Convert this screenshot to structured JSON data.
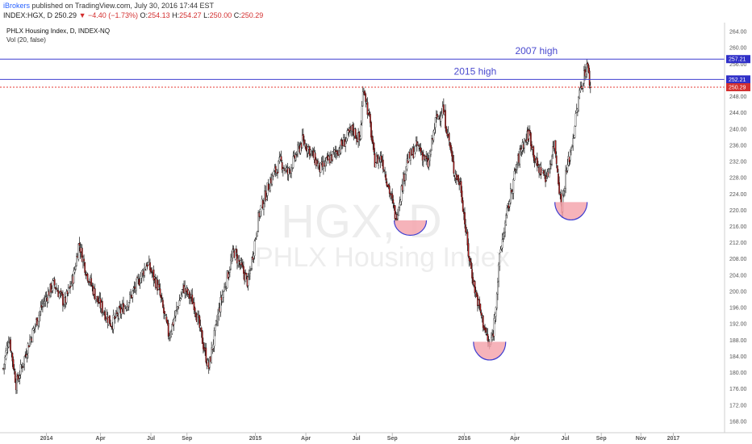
{
  "header": {
    "publisher": "iBrokers",
    "published_text": " published on TradingView.com, July 30, 2016 17:44 EST",
    "symbol": "INDEX:HGX, D",
    "last": "250.29",
    "change": "▼ −4.40 (−1.73%)",
    "open_label": "O:",
    "open": "254.13",
    "high_label": "H:",
    "high": "254.27",
    "low_label": "L:",
    "low": "250.00",
    "close_label": "C:",
    "close": "250.29"
  },
  "legend": {
    "title": "PHLX Housing Index, D, INDEX-NQ",
    "indicator": "Vol (20, false)"
  },
  "watermark": {
    "symbol": "HGX, D",
    "name": "PHLX Housing Index"
  },
  "colors": {
    "up": "#ffffff",
    "down": "#b71c1c",
    "wick": "#111111",
    "blue_line": "#3f3fd0",
    "red_line": "#e53935",
    "tag_blue": "#3030c8",
    "tag_red": "#d32f2f",
    "bowl_fill": "#f4a6ae",
    "bowl_stroke": "#3f3fd0"
  },
  "chart_data": {
    "type": "candlestick",
    "title": "PHLX Housing Index, D, INDEX-NQ",
    "y_ticks": [
      "264.00",
      "260.00",
      "256.00",
      "252.00",
      "248.00",
      "244.00",
      "240.00",
      "236.00",
      "232.00",
      "228.00",
      "224.00",
      "220.00",
      "216.00",
      "212.00",
      "208.00",
      "204.00",
      "200.00",
      "196.00",
      "192.00",
      "188.00",
      "184.00",
      "180.00",
      "176.00",
      "172.00",
      "168.00"
    ],
    "ylim": [
      165.2,
      266.2
    ],
    "x_ticks": [
      {
        "label": "2014",
        "t": 0.06
      },
      {
        "label": "Apr",
        "t": 0.135
      },
      {
        "label": "Jul",
        "t": 0.205
      },
      {
        "label": "Sep",
        "t": 0.255
      },
      {
        "label": "2015",
        "t": 0.35
      },
      {
        "label": "Apr",
        "t": 0.42
      },
      {
        "label": "Jul",
        "t": 0.49
      },
      {
        "label": "Sep",
        "t": 0.54
      },
      {
        "label": "2016",
        "t": 0.64
      },
      {
        "label": "Apr",
        "t": 0.71
      },
      {
        "label": "Jul",
        "t": 0.78
      },
      {
        "label": "Sep",
        "t": 0.83
      },
      {
        "label": "Nov",
        "t": 0.885
      },
      {
        "label": "2017",
        "t": 0.93
      }
    ],
    "path_keypoints": [
      [
        0.0,
        181
      ],
      [
        0.008,
        189
      ],
      [
        0.018,
        177
      ],
      [
        0.035,
        187
      ],
      [
        0.055,
        197
      ],
      [
        0.07,
        202
      ],
      [
        0.085,
        197
      ],
      [
        0.098,
        204
      ],
      [
        0.105,
        212
      ],
      [
        0.115,
        205
      ],
      [
        0.13,
        198
      ],
      [
        0.15,
        192
      ],
      [
        0.175,
        198
      ],
      [
        0.2,
        207
      ],
      [
        0.215,
        201
      ],
      [
        0.23,
        189
      ],
      [
        0.25,
        201
      ],
      [
        0.265,
        197
      ],
      [
        0.285,
        181
      ],
      [
        0.3,
        196
      ],
      [
        0.32,
        210
      ],
      [
        0.34,
        202
      ],
      [
        0.355,
        219
      ],
      [
        0.37,
        227
      ],
      [
        0.385,
        232
      ],
      [
        0.395,
        229
      ],
      [
        0.415,
        237
      ],
      [
        0.425,
        235
      ],
      [
        0.44,
        230
      ],
      [
        0.455,
        233
      ],
      [
        0.47,
        236
      ],
      [
        0.485,
        240
      ],
      [
        0.495,
        237
      ],
      [
        0.5,
        251
      ],
      [
        0.51,
        240
      ],
      [
        0.515,
        232
      ],
      [
        0.525,
        233
      ],
      [
        0.545,
        218
      ],
      [
        0.56,
        232
      ],
      [
        0.575,
        236
      ],
      [
        0.59,
        231
      ],
      [
        0.6,
        242
      ],
      [
        0.61,
        245
      ],
      [
        0.618,
        238
      ],
      [
        0.625,
        230
      ],
      [
        0.635,
        226
      ],
      [
        0.645,
        210
      ],
      [
        0.655,
        200
      ],
      [
        0.665,
        193
      ],
      [
        0.675,
        186
      ],
      [
        0.68,
        190
      ],
      [
        0.69,
        210
      ],
      [
        0.7,
        220
      ],
      [
        0.71,
        229
      ],
      [
        0.72,
        236
      ],
      [
        0.73,
        239
      ],
      [
        0.74,
        231
      ],
      [
        0.755,
        228
      ],
      [
        0.765,
        237
      ],
      [
        0.775,
        220
      ],
      [
        0.78,
        228
      ],
      [
        0.79,
        237
      ],
      [
        0.8,
        249
      ],
      [
        0.81,
        256
      ],
      [
        0.815,
        250.3
      ]
    ],
    "close": 250.29,
    "levels": [
      {
        "label": "2007 high",
        "value": 257.21,
        "tag": "257.21",
        "color": "blue"
      },
      {
        "label": "2015 high",
        "value": 252.21,
        "tag": "252.21",
        "color": "blue"
      },
      {
        "label": "",
        "value": 250.29,
        "tag": "250.29",
        "color": "red"
      }
    ],
    "bowls": [
      {
        "t": 0.565,
        "top": 217.5,
        "bottom": 214.2
      },
      {
        "t": 0.675,
        "top": 187.6,
        "bottom": 183.5
      },
      {
        "t": 0.788,
        "top": 222.0,
        "bottom": 218.0
      }
    ]
  }
}
